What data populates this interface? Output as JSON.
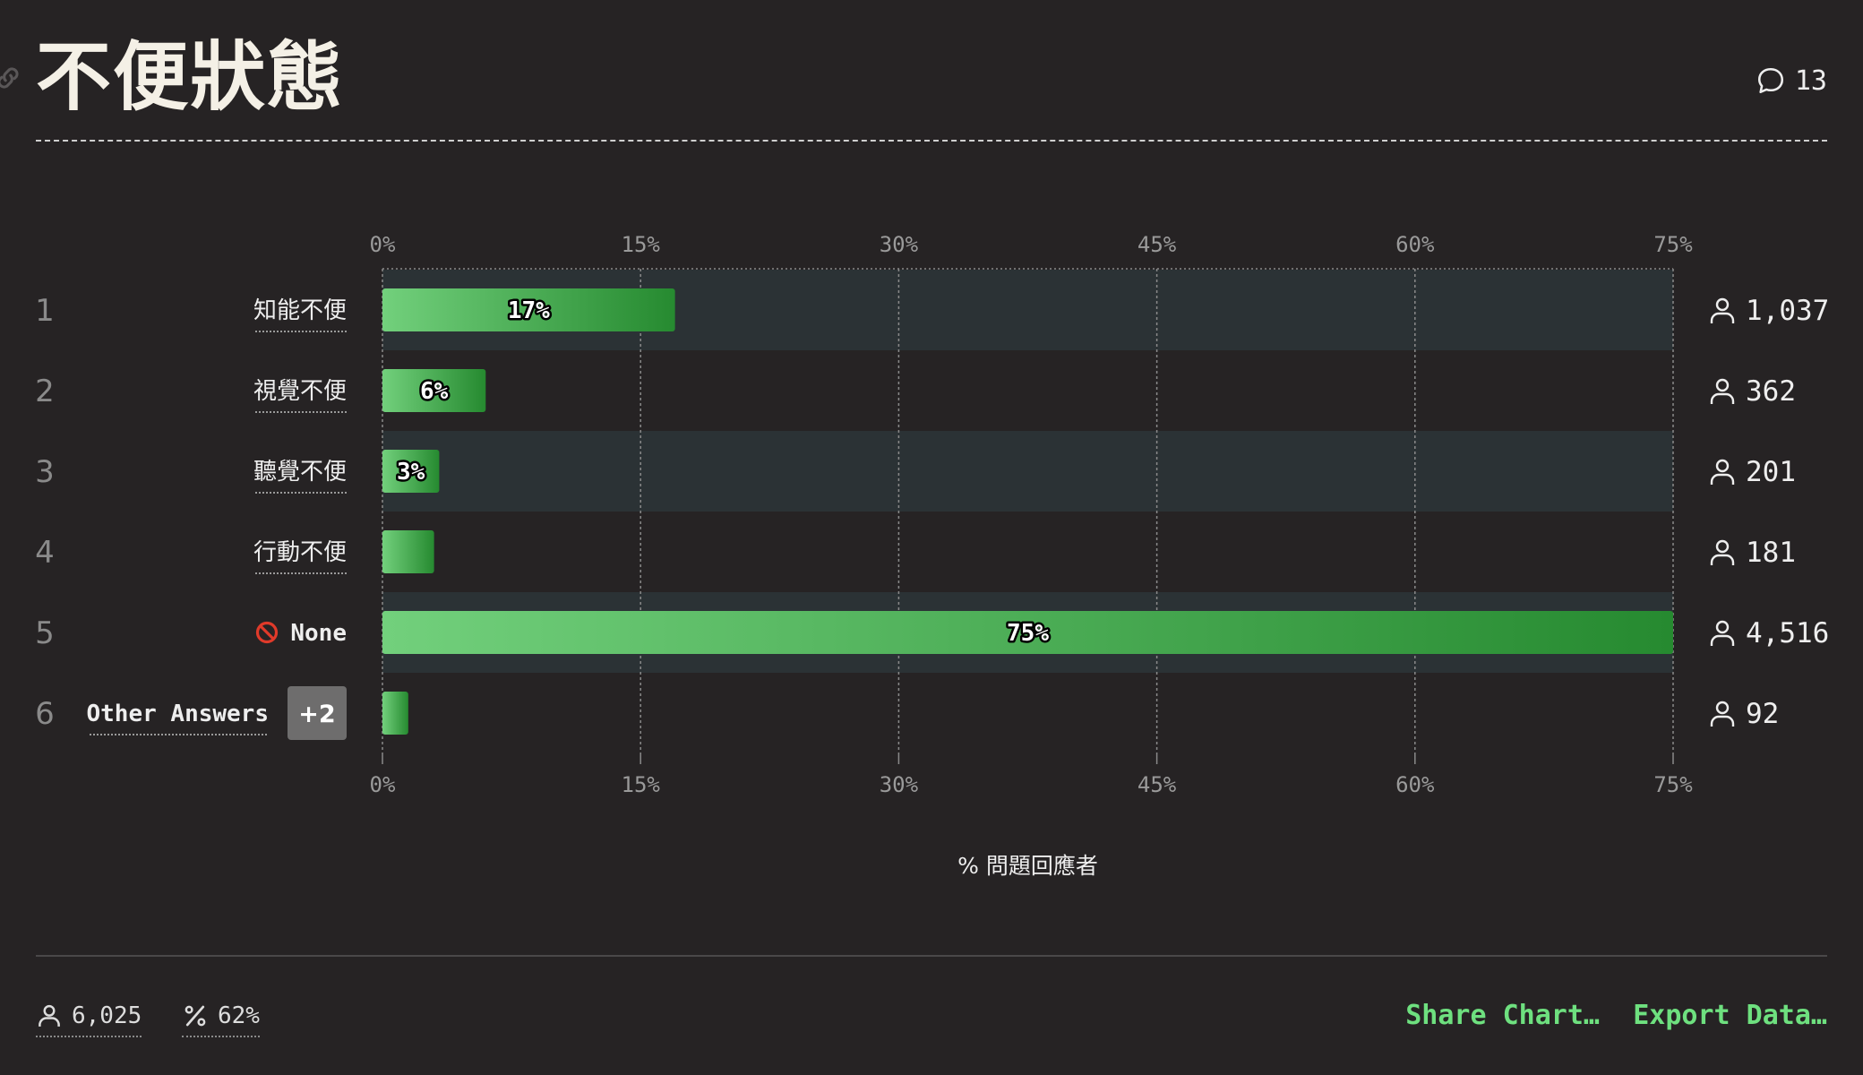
{
  "header": {
    "title": "不便狀態",
    "comment_count": "13"
  },
  "chart_data": {
    "type": "bar",
    "orientation": "horizontal",
    "title": "不便狀態",
    "xlabel": "% 問題回應者",
    "xlim": [
      0,
      75
    ],
    "xticks": [
      "0%",
      "15%",
      "30%",
      "45%",
      "60%",
      "75%"
    ],
    "grid": true,
    "categories": [
      {
        "rank": "1",
        "label": "知能不便",
        "percent": 17,
        "percent_label": "17%",
        "count": "1,037"
      },
      {
        "rank": "2",
        "label": "視覺不便",
        "percent": 6,
        "percent_label": "6%",
        "count": "362"
      },
      {
        "rank": "3",
        "label": "聽覺不便",
        "percent": 3.3,
        "percent_label": "3%",
        "count": "201"
      },
      {
        "rank": "4",
        "label": "行動不便",
        "percent": 3,
        "percent_label": "",
        "count": "181"
      },
      {
        "rank": "5",
        "label": "None",
        "icon": "no-entry-icon",
        "percent": 75,
        "percent_label": "75%",
        "count": "4,516"
      },
      {
        "rank": "6",
        "label": "Other Answers",
        "badge": "+2",
        "percent": 1.5,
        "percent_label": "",
        "count": "92"
      }
    ],
    "colors": {
      "bar_light": "#72d07c",
      "bar_dark": "#268a30",
      "row_highlight": "#2b3235"
    }
  },
  "footer": {
    "respondents": "6,025",
    "percent_answered": "62%",
    "share_label": "Share Chart…",
    "export_label": "Export Data…"
  }
}
